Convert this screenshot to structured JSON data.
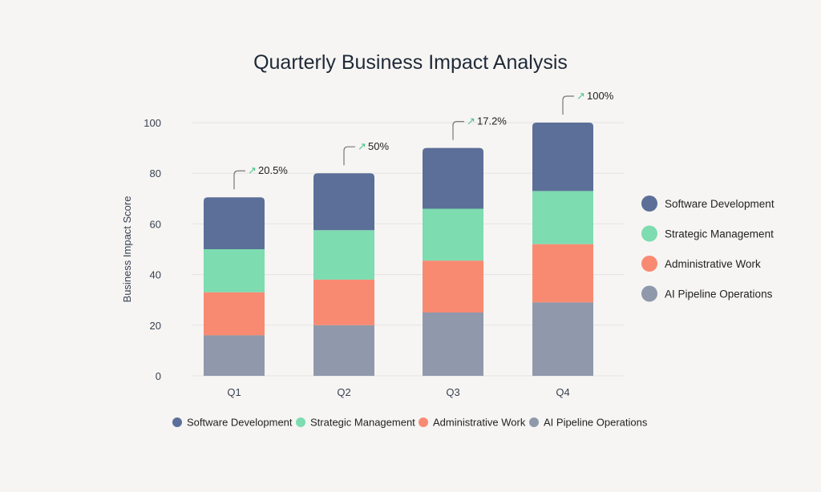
{
  "chart_data": {
    "type": "bar",
    "stacked": true,
    "title": "Quarterly Business Impact Analysis",
    "xlabel": "",
    "ylabel": "Business Impact Score",
    "ylim": [
      0,
      100
    ],
    "yticks": [
      0,
      20,
      40,
      60,
      80,
      100
    ],
    "grid": true,
    "categories": [
      "Q1",
      "Q2",
      "Q3",
      "Q4"
    ],
    "series": [
      {
        "name": "AI Pipeline Operations",
        "color": "#9099ab",
        "values": [
          16,
          20,
          25,
          29
        ]
      },
      {
        "name": "Administrative Work",
        "color": "#f98a72",
        "values": [
          17,
          18,
          20.5,
          23
        ]
      },
      {
        "name": "Strategic Management",
        "color": "#7ddcb0",
        "values": [
          17,
          19.5,
          20.5,
          21
        ]
      },
      {
        "name": "Software Development",
        "color": "#5b6f98",
        "values": [
          20.5,
          22.5,
          24,
          27
        ]
      }
    ],
    "annotations": [
      "20.5%",
      "50%",
      "17.2%",
      "100%"
    ],
    "legend_order": [
      "Software Development",
      "Strategic Management",
      "Administrative Work",
      "AI Pipeline Operations"
    ],
    "legend_placement": [
      "right",
      "bottom"
    ],
    "annotation_arrow_color": "#4cc38a"
  }
}
